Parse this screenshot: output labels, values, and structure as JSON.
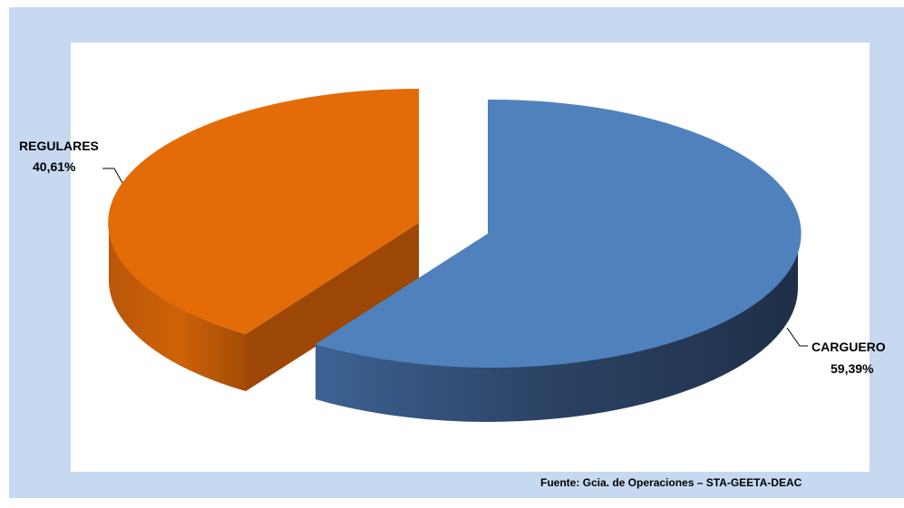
{
  "chart_data": {
    "type": "pie",
    "variant": "3d-exploded",
    "slices": [
      {
        "name": "CARGUERO",
        "value": 59.39,
        "label_value": "59,39%",
        "color": "#4f81bd"
      },
      {
        "name": "REGULARES",
        "value": 40.61,
        "label_value": "40,61%",
        "color": "#e36c09"
      }
    ],
    "legend": "none"
  },
  "source": "Fuente: Gcia. de Operaciones – STA-GEETA-DEAC",
  "colors": {
    "frame": "#c6d9f0",
    "plot_bg": "#ffffff"
  }
}
